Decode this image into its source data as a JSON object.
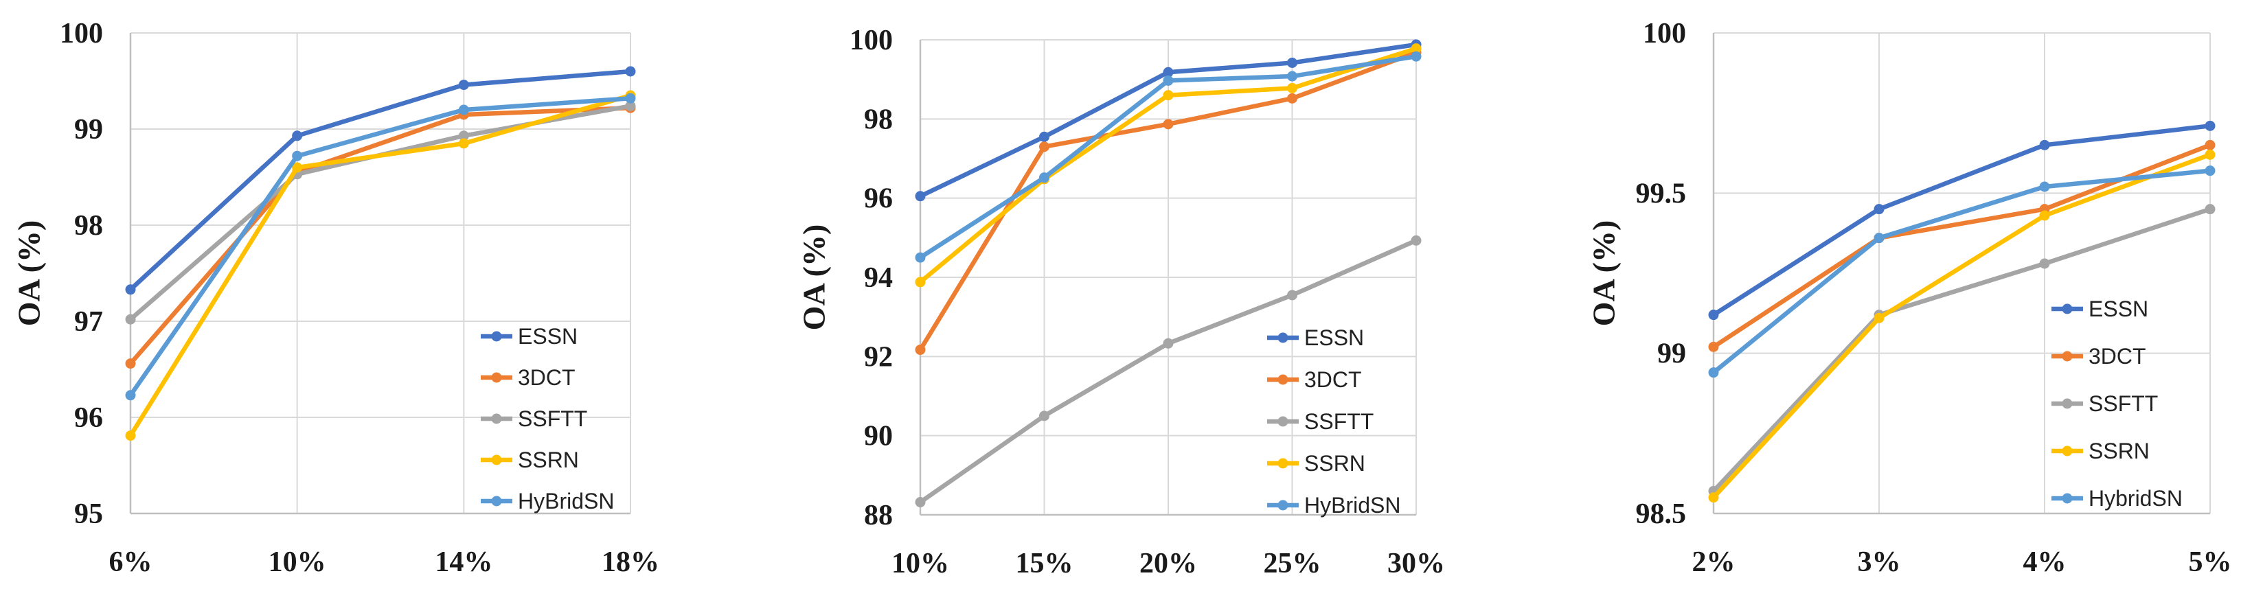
{
  "chart_data": [
    {
      "type": "line",
      "categories": [
        "6%",
        "10%",
        "14%",
        "18%"
      ],
      "ylabel": "OA (%)",
      "ylim": [
        95,
        100
      ],
      "yticks": [
        "95",
        "96",
        "97",
        "98",
        "99",
        "100"
      ],
      "yticks_values": [
        95,
        96,
        97,
        98,
        99,
        100
      ],
      "legend_position": "bottom-right",
      "series": [
        {
          "name": "ESSN",
          "color": "#4472c4",
          "values": [
            97.33,
            98.93,
            99.46,
            99.6
          ]
        },
        {
          "name": "3DCT",
          "color": "#ed7d31",
          "values": [
            96.56,
            98.55,
            99.15,
            99.22
          ]
        },
        {
          "name": "SSFTT",
          "color": "#a5a5a5",
          "values": [
            97.02,
            98.53,
            98.93,
            99.24
          ]
        },
        {
          "name": "SSRN",
          "color": "#ffc000",
          "values": [
            95.81,
            98.6,
            98.85,
            99.35
          ]
        },
        {
          "name": "HyBridSN",
          "color": "#5b9bd5",
          "values": [
            96.23,
            98.72,
            99.2,
            99.32
          ]
        }
      ]
    },
    {
      "type": "line",
      "categories": [
        "10%",
        "15%",
        "20%",
        "25%",
        "30%"
      ],
      "ylabel": "OA (%)",
      "ylim": [
        88,
        100
      ],
      "yticks": [
        "88",
        "90",
        "92",
        "94",
        "96",
        "98",
        "100"
      ],
      "yticks_values": [
        88,
        90,
        92,
        94,
        96,
        98,
        100
      ],
      "legend_position": "bottom-right",
      "series": [
        {
          "name": "ESSN",
          "color": "#4472c4",
          "values": [
            96.05,
            97.55,
            99.18,
            99.42,
            99.88
          ]
        },
        {
          "name": "3DCT",
          "color": "#ed7d31",
          "values": [
            92.17,
            97.3,
            97.87,
            98.52,
            99.68
          ]
        },
        {
          "name": "SSFTT",
          "color": "#a5a5a5",
          "values": [
            88.32,
            90.5,
            92.33,
            93.55,
            94.93
          ]
        },
        {
          "name": "SSRN",
          "color": "#ffc000",
          "values": [
            93.88,
            96.48,
            98.6,
            98.78,
            99.78
          ]
        },
        {
          "name": "HyBridSN",
          "color": "#5b9bd5",
          "values": [
            94.5,
            96.52,
            98.97,
            99.08,
            99.58
          ]
        }
      ]
    },
    {
      "type": "line",
      "categories": [
        "2%",
        "3%",
        "4%",
        "5%"
      ],
      "ylabel": "OA (%)",
      "ylim": [
        98.5,
        100
      ],
      "yticks": [
        "98.5",
        "99",
        "99.5",
        "100"
      ],
      "yticks_values": [
        98.5,
        99,
        99.5,
        100
      ],
      "legend_position": "bottom-right",
      "series": [
        {
          "name": "ESSN",
          "color": "#4472c4",
          "values": [
            99.12,
            99.45,
            99.65,
            99.71
          ]
        },
        {
          "name": "3DCT",
          "color": "#ed7d31",
          "values": [
            99.02,
            99.36,
            99.45,
            99.65
          ]
        },
        {
          "name": "SSFTT",
          "color": "#a5a5a5",
          "values": [
            98.57,
            99.12,
            99.28,
            99.45
          ]
        },
        {
          "name": "SSRN",
          "color": "#ffc000",
          "values": [
            98.55,
            99.11,
            99.43,
            99.62
          ]
        },
        {
          "name": "HybridSN",
          "color": "#5b9bd5",
          "values": [
            98.94,
            99.36,
            99.52,
            99.57
          ]
        }
      ]
    }
  ]
}
